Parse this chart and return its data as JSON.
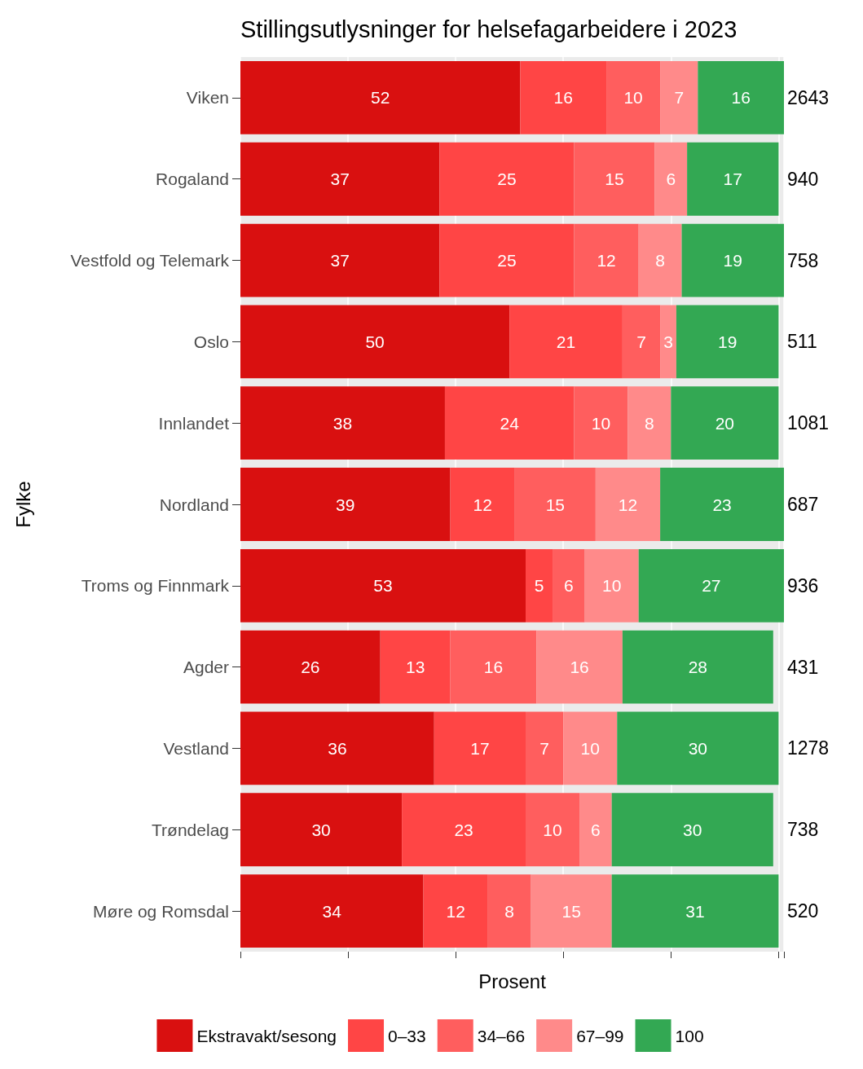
{
  "chart_data": {
    "type": "bar",
    "orientation": "horizontal",
    "stacked": true,
    "title": "Stillingsutlysninger for helsefagarbeidere i 2023",
    "xlabel": "Prosent",
    "ylabel": "Fylke",
    "categories": [
      "Viken",
      "Rogaland",
      "Vestfold og Telemark",
      "Oslo",
      "Innlandet",
      "Nordland",
      "Troms og Finnmark",
      "Agder",
      "Vestland",
      "Trøndelag",
      "Møre og Romsdal"
    ],
    "series": [
      {
        "name": "Ekstravakt/sesong",
        "color": "#d91010",
        "values": [
          52,
          37,
          37,
          50,
          38,
          39,
          53,
          26,
          36,
          30,
          34
        ]
      },
      {
        "name": "0–33",
        "color": "#ff4545",
        "values": [
          16,
          25,
          25,
          21,
          24,
          12,
          5,
          13,
          17,
          23,
          12
        ]
      },
      {
        "name": "34–66",
        "color": "#ff5e5e",
        "values": [
          10,
          15,
          12,
          7,
          10,
          15,
          6,
          16,
          7,
          10,
          8
        ]
      },
      {
        "name": "67–99",
        "color": "#ff8a8a",
        "values": [
          7,
          6,
          8,
          3,
          8,
          12,
          10,
          16,
          10,
          6,
          15
        ]
      },
      {
        "name": "100",
        "color": "#33a853",
        "values": [
          16,
          17,
          19,
          19,
          20,
          23,
          27,
          28,
          30,
          30,
          31
        ]
      }
    ],
    "annotations": [
      "2643",
      "940",
      "758",
      "511",
      "1081",
      "687",
      "936",
      "431",
      "1278",
      "738",
      "520"
    ],
    "data_labels": true,
    "grid": "x",
    "legend": "bottom",
    "tick_labels": "y"
  }
}
